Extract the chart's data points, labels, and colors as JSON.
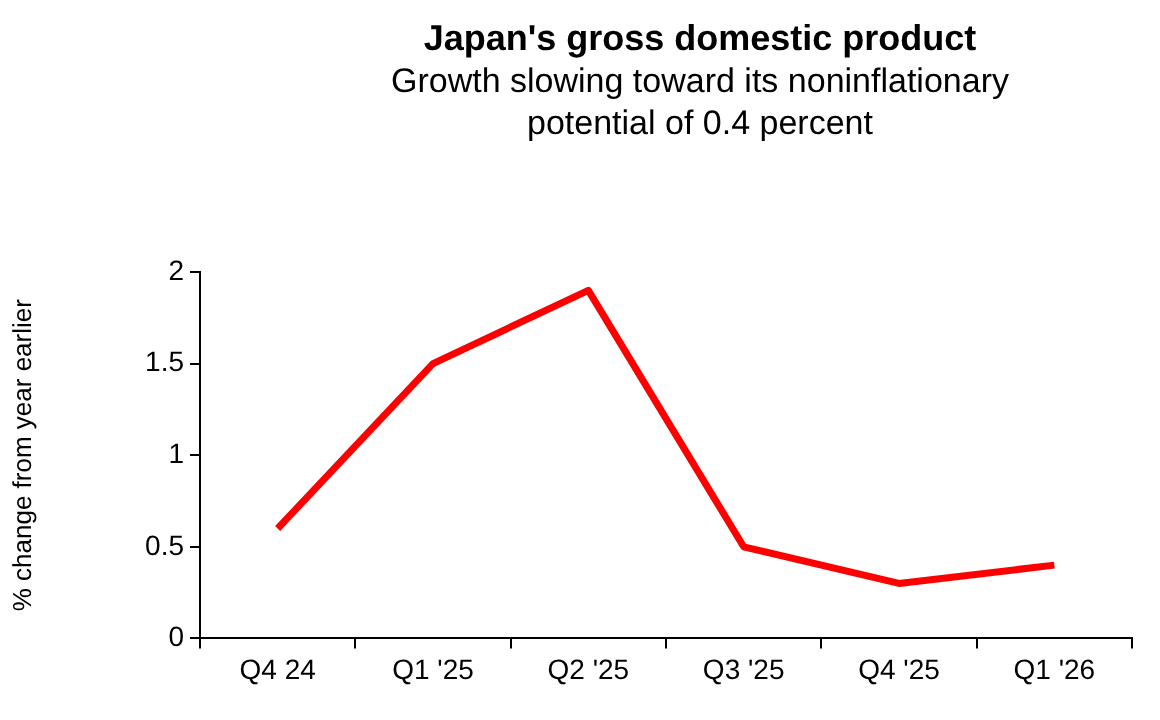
{
  "chart_data": {
    "type": "line",
    "title": "Japan's gross domestic product",
    "subtitle": "Growth slowing toward its noninflationary potential of 0.4 percent",
    "ylabel": "% change from year earlier",
    "categories": [
      "Q4 24",
      "Q1 '25",
      "Q2 '25",
      "Q3 '25",
      "Q4 '25",
      "Q1 '26"
    ],
    "series": [
      {
        "color": "#ff0000",
        "values": [
          0.6,
          1.5,
          1.9,
          0.5,
          0.3,
          0.4
        ]
      }
    ],
    "ylim": [
      0,
      2
    ],
    "yticks": [
      0,
      0.5,
      1,
      1.5,
      2
    ],
    "grid": false,
    "legend": false,
    "marker": "none",
    "line_style": "solid"
  }
}
